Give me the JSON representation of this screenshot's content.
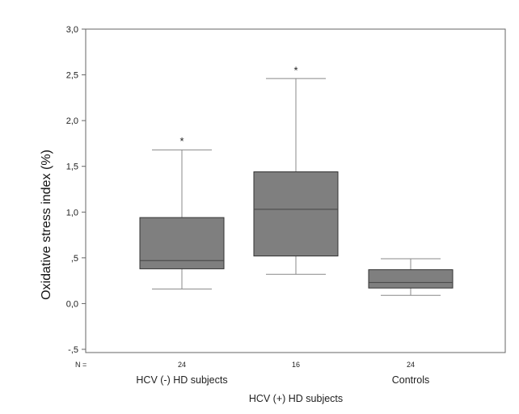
{
  "chart_data": {
    "type": "boxplot",
    "ylabel": "Oxidative stress index (%)",
    "ylim": [
      -0.5,
      3.0
    ],
    "yticks": [
      {
        "value": 3.0,
        "label": "3,0"
      },
      {
        "value": 2.5,
        "label": "2,5"
      },
      {
        "value": 2.0,
        "label": "2,0"
      },
      {
        "value": 1.5,
        "label": "1,5"
      },
      {
        "value": 1.0,
        "label": "1,0"
      },
      {
        "value": 0.5,
        "label": ",5"
      },
      {
        "value": 0.0,
        "label": "0,0"
      },
      {
        "value": -0.5,
        "label": "-,5"
      }
    ],
    "n_prefix": "N =",
    "grid": false,
    "box_color": "#7f7f7f",
    "groups": [
      {
        "label": "HCV (-) HD subjects",
        "n": "24",
        "min": 0.16,
        "q1": 0.38,
        "median": 0.47,
        "q3": 0.94,
        "max": 1.68,
        "marker": "*",
        "marker_value": 1.8
      },
      {
        "label": "HCV (+) HD subjects",
        "n": "16",
        "min": 0.32,
        "q1": 0.52,
        "median": 1.03,
        "q3": 1.44,
        "max": 2.46,
        "marker": "*",
        "marker_value": 2.57
      },
      {
        "label": "Controls",
        "n": "24",
        "min": 0.09,
        "q1": 0.17,
        "median": 0.23,
        "q3": 0.37,
        "max": 0.49
      }
    ]
  }
}
